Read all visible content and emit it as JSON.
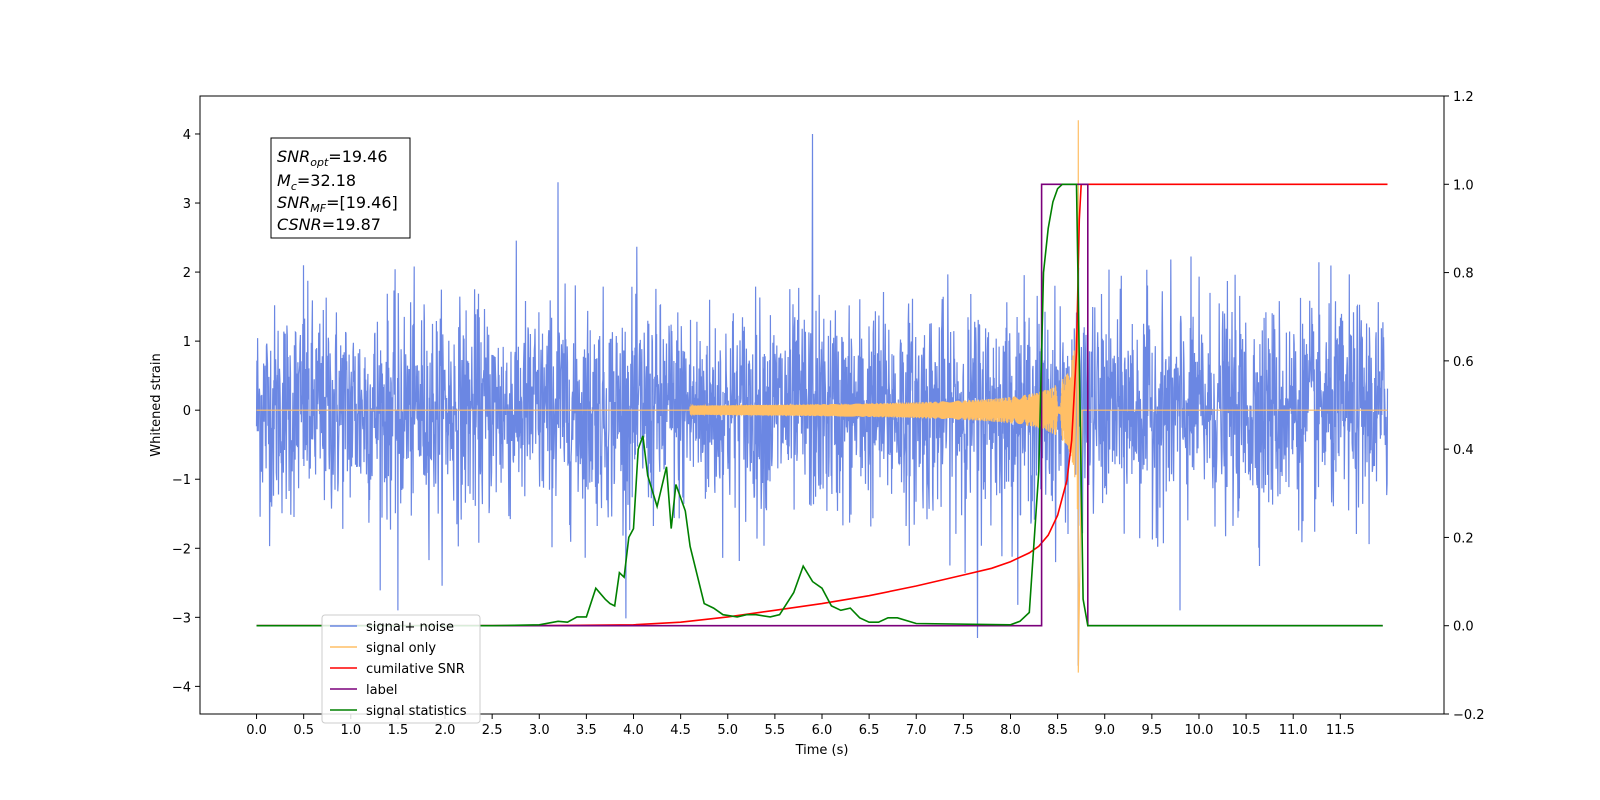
{
  "chart_data": {
    "type": "line",
    "xlabel": "Time (s)",
    "ylabel": "Whitened strain",
    "xlim": [
      -0.6,
      12.6
    ],
    "ylim_left": [
      -4.4,
      4.55
    ],
    "ylim_right": [
      -0.2,
      1.2
    ],
    "x_ticks": [
      "0.0",
      "0.5",
      "1.0",
      "1.5",
      "2.0",
      "2.5",
      "3.0",
      "3.5",
      "4.0",
      "4.5",
      "5.0",
      "5.5",
      "6.0",
      "6.5",
      "7.0",
      "7.5",
      "8.0",
      "8.5",
      "9.0",
      "9.5",
      "10.0",
      "10.5",
      "11.0",
      "11.5"
    ],
    "y_left_ticks": [
      "-4",
      "-3",
      "-2",
      "-1",
      "0",
      "1",
      "2",
      "3",
      "4"
    ],
    "y_right_ticks": [
      "-0.2",
      "0.0",
      "0.2",
      "0.4",
      "0.6",
      "0.8",
      "1.0",
      "1.2"
    ],
    "legend_position": "lower-left",
    "annotation": [
      {
        "name": "SNR",
        "sub": "opt",
        "value": "=19.46"
      },
      {
        "name": "M",
        "sub": "c",
        "value": "=32.18"
      },
      {
        "name": "SNR",
        "sub": "MF",
        "value": "=[19.46]"
      },
      {
        "name": "CSNR",
        "sub": "",
        "value": "=19.87"
      }
    ],
    "series": [
      {
        "name": "signal+ noise",
        "axis": "left",
        "color": "#6b87e3",
        "x_range": [
          0,
          12
        ],
        "sigma": 0.75,
        "peaks": [
          [
            0.5,
            2.1
          ],
          [
            1.5,
            -2.9
          ],
          [
            3.2,
            3.3
          ],
          [
            5.9,
            4.0
          ],
          [
            7.65,
            -3.3
          ],
          [
            8.72,
            4.1
          ],
          [
            8.72,
            -3.7
          ],
          [
            9.8,
            -2.9
          ]
        ]
      },
      {
        "name": "signal only",
        "axis": "left",
        "color": "#ffbf66",
        "chirp": {
          "t_merge": 8.72,
          "t_end": 8.76,
          "peak": 4.2,
          "trough": -3.8
        }
      },
      {
        "name": "cumilative SNR",
        "axis": "right",
        "color": "#ff0000",
        "x": [
          0,
          3.0,
          4.0,
          4.5,
          5.0,
          5.5,
          6.0,
          6.5,
          7.0,
          7.5,
          7.8,
          8.0,
          8.2,
          8.3,
          8.4,
          8.5,
          8.6,
          8.65,
          8.7,
          8.73,
          8.75,
          12.0
        ],
        "values": [
          0,
          0,
          0.002,
          0.008,
          0.02,
          0.035,
          0.05,
          0.068,
          0.09,
          0.115,
          0.13,
          0.145,
          0.165,
          0.18,
          0.205,
          0.25,
          0.33,
          0.42,
          0.62,
          0.92,
          1.0,
          1.0
        ]
      },
      {
        "name": "label",
        "axis": "right",
        "color": "#7b007b",
        "x": [
          0,
          8.33,
          8.33,
          8.82,
          8.82,
          11.95
        ],
        "values": [
          0,
          0,
          1,
          1,
          0,
          0
        ]
      },
      {
        "name": "signal statistics",
        "axis": "right",
        "color": "#008000",
        "x": [
          0,
          2.5,
          3.0,
          3.2,
          3.3,
          3.4,
          3.5,
          3.6,
          3.7,
          3.75,
          3.8,
          3.85,
          3.9,
          3.95,
          4.0,
          4.05,
          4.1,
          4.15,
          4.25,
          4.35,
          4.4,
          4.45,
          4.55,
          4.6,
          4.75,
          4.85,
          4.95,
          5.1,
          5.2,
          5.3,
          5.45,
          5.55,
          5.7,
          5.8,
          5.9,
          6.0,
          6.1,
          6.2,
          6.3,
          6.4,
          6.5,
          6.6,
          6.7,
          6.8,
          7.0,
          8.0,
          8.1,
          8.2,
          8.3,
          8.35,
          8.4,
          8.45,
          8.5,
          8.55,
          8.6,
          8.65,
          8.7,
          8.73,
          8.77,
          8.82,
          11.95
        ],
        "values": [
          0,
          0,
          0.002,
          0.01,
          0.008,
          0.02,
          0.02,
          0.085,
          0.06,
          0.05,
          0.045,
          0.12,
          0.11,
          0.2,
          0.22,
          0.4,
          0.43,
          0.34,
          0.27,
          0.36,
          0.22,
          0.32,
          0.26,
          0.18,
          0.05,
          0.04,
          0.025,
          0.02,
          0.025,
          0.025,
          0.02,
          0.025,
          0.075,
          0.135,
          0.1,
          0.085,
          0.045,
          0.035,
          0.04,
          0.018,
          0.008,
          0.008,
          0.018,
          0.018,
          0.005,
          0.002,
          0.01,
          0.03,
          0.35,
          0.8,
          0.9,
          0.96,
          0.99,
          1.0,
          1.0,
          1.0,
          1.0,
          0.6,
          0.06,
          0.0,
          0.0
        ]
      }
    ]
  }
}
